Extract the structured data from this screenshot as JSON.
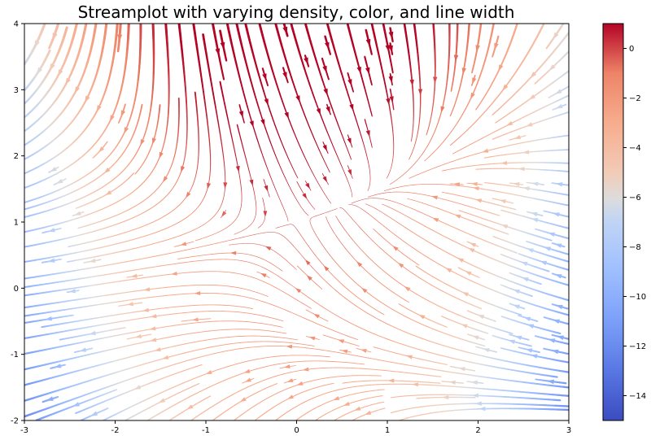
{
  "chart_data": {
    "type": "streamplot",
    "title": "Streamplot with varying density, color, and line width",
    "xlabel": "",
    "ylabel": "",
    "xlim": [
      -3,
      3
    ],
    "ylim": [
      -2,
      4
    ],
    "x_ticks": [
      -3,
      -2,
      -1,
      0,
      1,
      2,
      3
    ],
    "y_ticks": [
      -2,
      -1,
      0,
      1,
      2,
      3,
      4
    ],
    "x_tick_labels": [
      "-3",
      "-2",
      "-1",
      "0",
      "1",
      "2",
      "3"
    ],
    "y_tick_labels": [
      "-2",
      "-1",
      "0",
      "1",
      "2",
      "3",
      "4"
    ],
    "vector_field": {
      "U": "-1 - x^2 + y",
      "V": "1 + x - y^2",
      "color_by": "U"
    },
    "grid": false,
    "colorbar": {
      "colormap": "coolwarm",
      "range": [
        -15,
        1
      ],
      "ticks": [
        0,
        -2,
        -4,
        -6,
        -8,
        -10,
        -12,
        -14
      ],
      "tick_labels": [
        "0",
        "−2",
        "−4",
        "−6",
        "−8",
        "−10",
        "−12",
        "−14"
      ]
    },
    "colors": {
      "cold": "#3b4cc0",
      "neutral": "#dddcdc",
      "hot": "#b40426"
    }
  }
}
